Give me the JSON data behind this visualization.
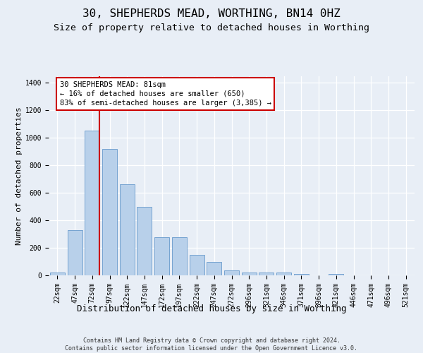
{
  "title1": "30, SHEPHERDS MEAD, WORTHING, BN14 0HZ",
  "title2": "Size of property relative to detached houses in Worthing",
  "xlabel": "Distribution of detached houses by size in Worthing",
  "ylabel": "Number of detached properties",
  "footnote": "Contains HM Land Registry data © Crown copyright and database right 2024.\nContains public sector information licensed under the Open Government Licence v3.0.",
  "categories": [
    "22sqm",
    "47sqm",
    "72sqm",
    "97sqm",
    "122sqm",
    "147sqm",
    "172sqm",
    "197sqm",
    "222sqm",
    "247sqm",
    "272sqm",
    "296sqm",
    "321sqm",
    "346sqm",
    "371sqm",
    "396sqm",
    "421sqm",
    "446sqm",
    "471sqm",
    "496sqm",
    "521sqm"
  ],
  "values": [
    20,
    330,
    1050,
    920,
    660,
    500,
    275,
    275,
    150,
    100,
    35,
    20,
    18,
    18,
    10,
    0,
    10,
    0,
    0,
    0,
    0
  ],
  "bar_color": "#b8d0ea",
  "bar_edge_color": "#6699cc",
  "highlight_index": 2,
  "highlight_color": "#cc0000",
  "annotation_text": "30 SHEPHERDS MEAD: 81sqm\n← 16% of detached houses are smaller (650)\n83% of semi-detached houses are larger (3,385) →",
  "ylim": [
    0,
    1450
  ],
  "yticks": [
    0,
    200,
    400,
    600,
    800,
    1000,
    1200,
    1400
  ],
  "background_color": "#e8eef6",
  "grid_color": "#ffffff",
  "title1_fontsize": 11.5,
  "title2_fontsize": 9.5,
  "xlabel_fontsize": 9,
  "ylabel_fontsize": 8,
  "tick_fontsize": 7,
  "annot_fontsize": 7.5,
  "footnote_fontsize": 6
}
